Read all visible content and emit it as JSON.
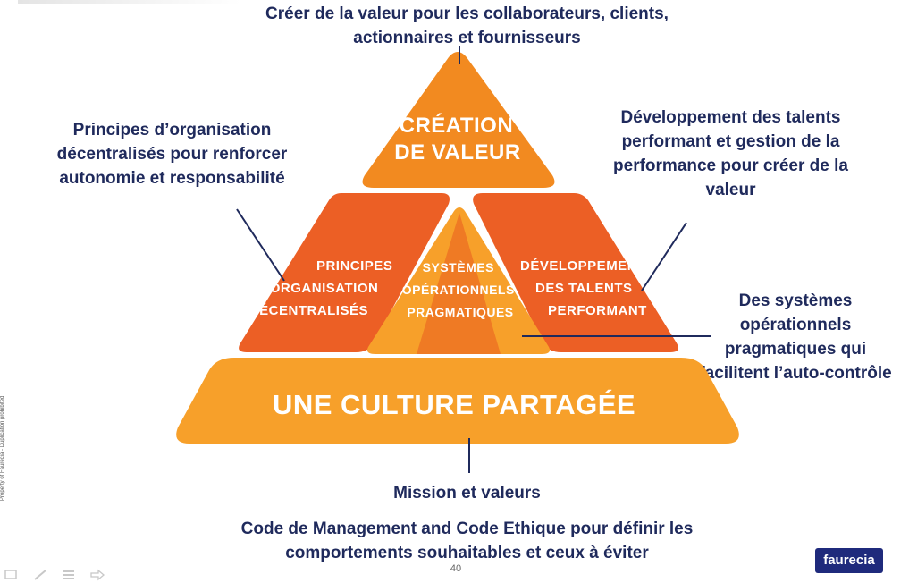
{
  "top_callout": "Créer de la valeur pour les collaborateurs, clients, actionnaires et fournisseurs",
  "left_callout": "Principes d’organisation décentralisés pour renforcer autonomie et responsabilité",
  "right_callout": "Développement des talents performant et gestion de la performance pour créer de la valeur",
  "systems_callout": "Des systèmes opérationnels pragmatiques qui facilitent l’auto-contrôle",
  "mission": "Mission et valeurs",
  "code": "Code de Management and Code Ethique pour définir les comportements souhaitables et ceux à éviter",
  "pyramid": {
    "top": [
      "CRÉATION",
      "DE VALEUR"
    ],
    "left": [
      "PRINCIPES",
      "D’ORGANISATION",
      "DÉCENTRALISÉS"
    ],
    "center": [
      "SYSTÈMES",
      "OPÉRATIONNELS",
      "PRAGMATIQUES"
    ],
    "right": [
      "DÉVELOPPEMENT",
      "DES TALENTS",
      "PERFORMANT"
    ],
    "base": "UNE CULTURE PARTAGÉE"
  },
  "page_number": "40",
  "footer_note": "Property of Faurecia - Duplication prohibited",
  "logo": "faurecia",
  "colors": {
    "text_navy": "#1f2a5c",
    "orange_light": "#f7a02a",
    "orange_mid": "#f28a20",
    "orange_dark": "#ec5f25",
    "logo_bg": "#1f2a7c"
  },
  "icons": [
    "pen-icon",
    "pencil-icon",
    "menu-icon",
    "arrow-icon"
  ]
}
